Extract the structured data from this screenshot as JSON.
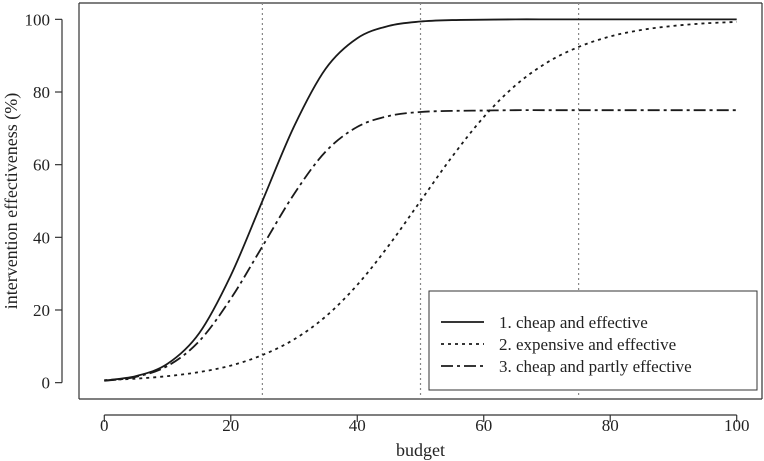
{
  "chart_data": {
    "type": "line",
    "xlabel": "budget",
    "ylabel": "intervention effectiveness (%)",
    "xlim": [
      -4,
      104
    ],
    "ylim": [
      -4.5,
      104.5
    ],
    "x_ticks": [
      "0",
      "20",
      "40",
      "60",
      "80",
      "100"
    ],
    "y_ticks": [
      "0",
      "20",
      "40",
      "60",
      "80",
      "100"
    ],
    "grid": false,
    "vertical_reference_lines": [
      25,
      50,
      75
    ],
    "legend": {
      "placement": "bottom-right"
    },
    "series": [
      {
        "name": "1. cheap and effective",
        "line_style": "solid",
        "x": [
          0,
          5,
          10,
          15,
          20,
          25,
          30,
          35,
          40,
          45,
          50,
          55,
          60,
          65,
          70,
          75,
          80,
          85,
          90,
          95,
          100
        ],
        "values": [
          0.6,
          1.8,
          5.2,
          13.6,
          29.5,
          50,
          70.5,
          86.4,
          94.8,
          98.2,
          99.4,
          99.8,
          99.9,
          100,
          100,
          100,
          100,
          100,
          100,
          100,
          100
        ]
      },
      {
        "name": "2. expensive and effective",
        "line_style": "dotted",
        "x": [
          0,
          5,
          10,
          15,
          20,
          25,
          30,
          35,
          40,
          45,
          50,
          55,
          60,
          65,
          70,
          75,
          80,
          85,
          90,
          95,
          100
        ],
        "values": [
          0.7,
          1.1,
          1.8,
          2.9,
          4.7,
          7.6,
          11.9,
          18.2,
          26.9,
          37.8,
          50,
          62.2,
          73.1,
          81.8,
          88.1,
          92.4,
          95.3,
          97.1,
          98.2,
          98.9,
          99.3
        ]
      },
      {
        "name": "3. cheap and partly effective",
        "line_style": "dash-dot",
        "x": [
          0,
          5,
          10,
          15,
          20,
          25,
          30,
          35,
          40,
          45,
          50,
          55,
          60,
          65,
          70,
          75,
          80,
          85,
          90,
          95,
          100
        ],
        "values": [
          0.5,
          1.6,
          4.6,
          11.4,
          23.1,
          37.5,
          51.9,
          63.6,
          70.4,
          73.4,
          74.5,
          74.8,
          74.9,
          75,
          75,
          75,
          75,
          75,
          75,
          75,
          75
        ]
      }
    ]
  }
}
